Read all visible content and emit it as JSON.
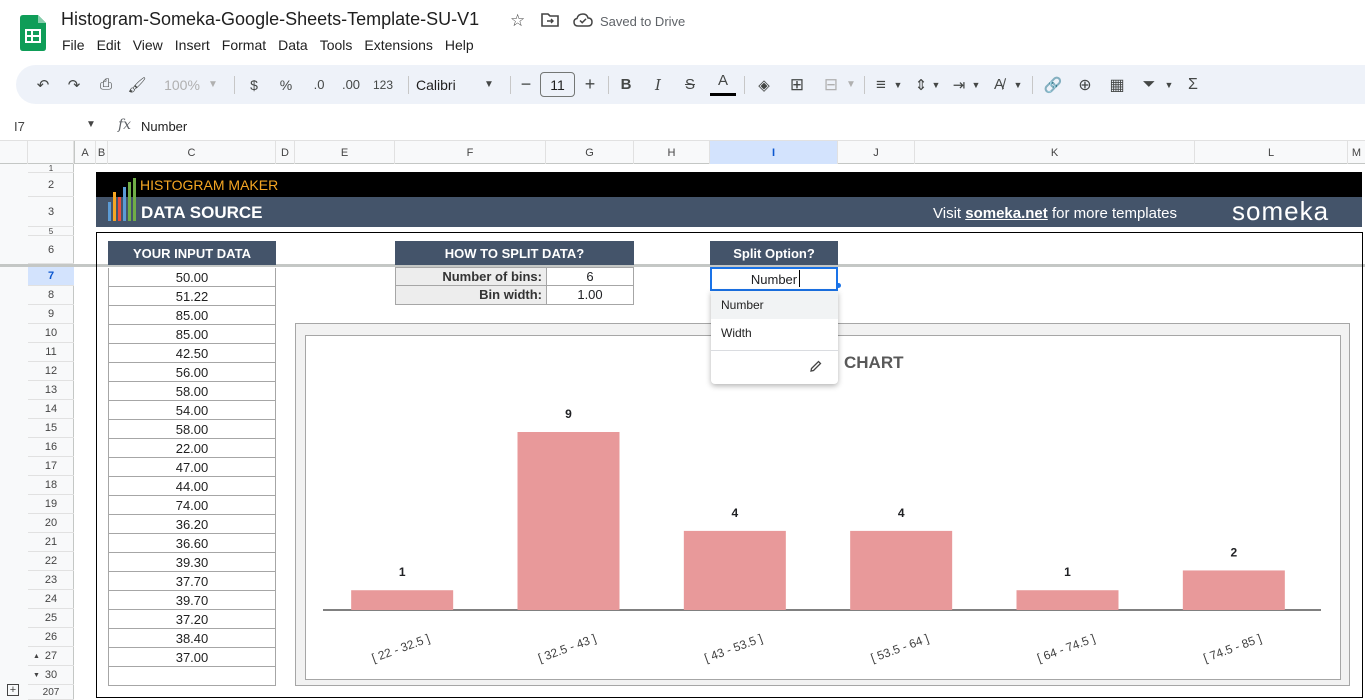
{
  "app": {
    "doc_title": "Histogram-Someka-Google-Sheets-Template-SU-V1",
    "saved_status": "Saved to Drive",
    "menu": [
      "File",
      "Edit",
      "View",
      "Insert",
      "Format",
      "Data",
      "Tools",
      "Extensions",
      "Help"
    ]
  },
  "toolbar": {
    "zoom": "100%",
    "currency": "$",
    "percent": "%",
    "decrease_decimal": ".0",
    "increase_decimal": ".00",
    "number_format": "123",
    "font": "Calibri",
    "font_size": "11",
    "bold": "B",
    "italic": "I",
    "strike": "S",
    "text_color": "A",
    "sum": "Σ"
  },
  "formula_bar": {
    "cell_ref": "I7",
    "fx": "fx",
    "value": "Number"
  },
  "grid": {
    "columns": [
      "A",
      "B",
      "C",
      "D",
      "E",
      "F",
      "G",
      "H",
      "I",
      "J",
      "K",
      "L",
      "M"
    ],
    "selected_column": "I",
    "rows": [
      "1",
      "2",
      "3",
      "5",
      "6",
      "7",
      "8",
      "9",
      "10",
      "11",
      "12",
      "13",
      "14",
      "15",
      "16",
      "17",
      "18",
      "19",
      "20",
      "21",
      "22",
      "23",
      "24",
      "25",
      "26",
      "27",
      "30",
      "207"
    ],
    "selected_row": "7"
  },
  "banner": {
    "title": "HISTOGRAM MAKER",
    "subtitle": "DATA SOURCE",
    "visit_prefix": "Visit ",
    "visit_link": "someka.net",
    "visit_suffix": " for more templates",
    "brand": "someka"
  },
  "input_data": {
    "header": "YOUR INPUT DATA",
    "values": [
      "50.00",
      "51.22",
      "85.00",
      "85.00",
      "42.50",
      "56.00",
      "58.00",
      "54.00",
      "58.00",
      "22.00",
      "47.00",
      "44.00",
      "74.00",
      "36.20",
      "36.60",
      "39.30",
      "37.70",
      "39.70",
      "37.20",
      "38.40",
      "37.00",
      ""
    ]
  },
  "split": {
    "header": "HOW TO SPLIT DATA?",
    "rows": [
      {
        "label": "Number of bins:",
        "value": "6"
      },
      {
        "label": "Bin width:",
        "value": "1.00"
      }
    ]
  },
  "split_option": {
    "header": "Split Option?",
    "value": "Number",
    "options": [
      "Number",
      "Width"
    ]
  },
  "colors": {
    "slate": "#44546a",
    "bar": "#e8999a",
    "orange": "#f5a623",
    "selection": "#1a73e8"
  },
  "chart_data": {
    "type": "bar",
    "title": "CHART",
    "categories": [
      "[ 22 - 32.5 ]",
      "[ 32.5 - 43 ]",
      "[ 43 - 53.5 ]",
      "[ 53.5 - 64 ]",
      "[ 64 - 74.5 ]",
      "[ 74.5 - 85 ]"
    ],
    "values": [
      1,
      9,
      4,
      4,
      1,
      2
    ],
    "data_labels": [
      "1",
      "9",
      "4",
      "4",
      "1",
      "2"
    ],
    "ylim": [
      0,
      9
    ],
    "grid": false,
    "xlabel": "",
    "ylabel": ""
  }
}
